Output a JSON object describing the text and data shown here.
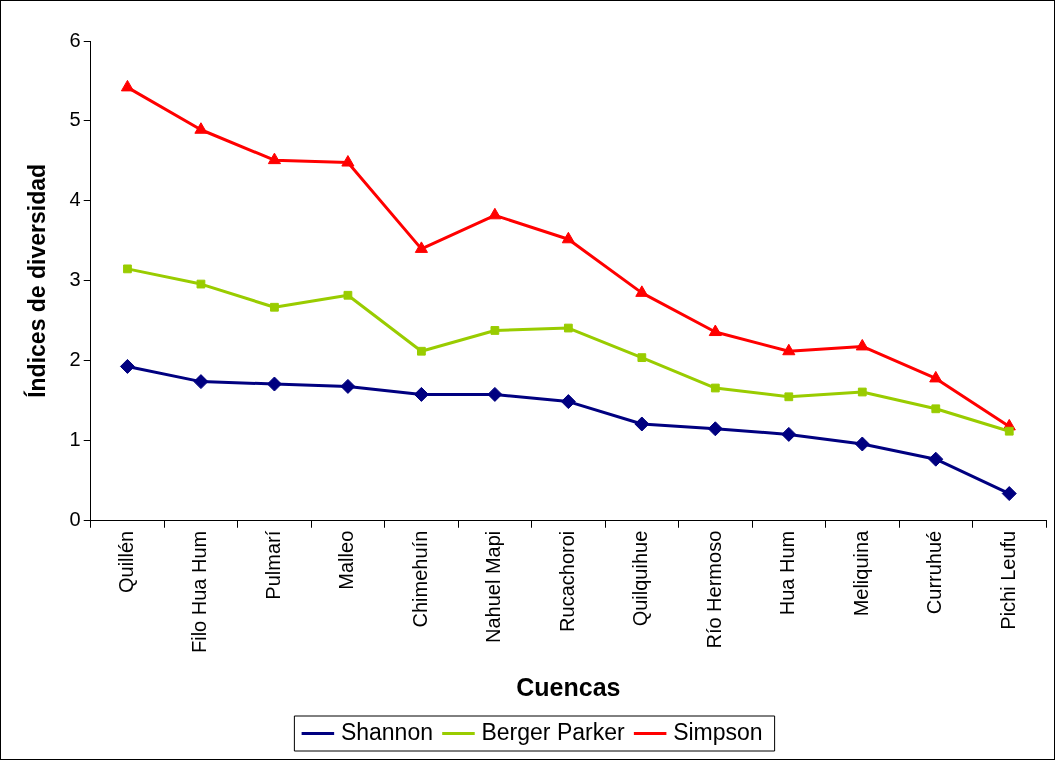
{
  "chart_data": {
    "type": "line",
    "xlabel": "Cuencas",
    "ylabel": "Índices de diversidad",
    "categories": [
      "Quillén",
      "Filo Hua Hum",
      "Pulmarí",
      "Malleo",
      "Chimehuín",
      "Nahuel Mapi",
      "Rucachoroi",
      "Quilquihue",
      "Río Hermoso",
      "Hua Hum",
      "Meliquina",
      "Curruhué",
      "Pichi Leufu"
    ],
    "series": [
      {
        "name": "Shannon",
        "color": "#000080",
        "marker": "diamond",
        "values": [
          1.93,
          1.74,
          1.71,
          1.68,
          1.58,
          1.58,
          1.49,
          1.21,
          1.15,
          1.08,
          0.96,
          0.77,
          0.34
        ]
      },
      {
        "name": "Berger Parker",
        "color": "#99cc00",
        "marker": "square",
        "values": [
          3.15,
          2.96,
          2.67,
          2.82,
          2.12,
          2.38,
          2.41,
          2.04,
          1.66,
          1.55,
          1.61,
          1.4,
          1.12
        ]
      },
      {
        "name": "Simpson",
        "color": "#ff0000",
        "marker": "triangle",
        "values": [
          5.42,
          4.89,
          4.51,
          4.48,
          3.4,
          3.82,
          3.52,
          2.85,
          2.36,
          2.12,
          2.18,
          1.78,
          1.18
        ]
      }
    ],
    "ylim": [
      0,
      6
    ],
    "yticks": [
      0,
      1,
      2,
      3,
      4,
      5,
      6
    ],
    "grid": false,
    "legend": "bottom",
    "line_style": "solid"
  }
}
